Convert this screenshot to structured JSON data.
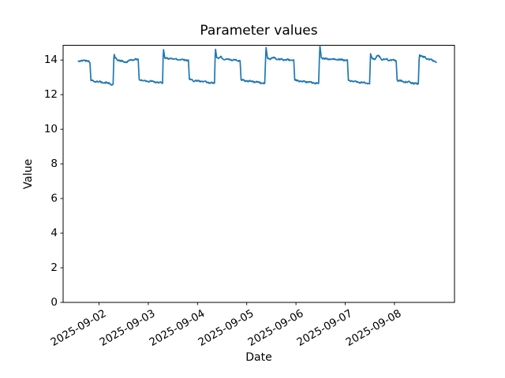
{
  "chart_data": {
    "type": "line",
    "title": "Parameter values",
    "xlabel": "Date",
    "ylabel": "Value",
    "background": "#ffffff",
    "axis_color": "#000000",
    "grid": false,
    "legend": null,
    "x_tick_labels": [
      "2025-09-02",
      "2025-09-03",
      "2025-09-04",
      "2025-09-05",
      "2025-09-06",
      "2025-09-07",
      "2025-09-08"
    ],
    "x_tick_days": [
      0,
      1,
      2,
      3,
      4,
      5,
      6
    ],
    "y_tick_labels": [
      "0",
      "2",
      "4",
      "6",
      "8",
      "10",
      "12",
      "14"
    ],
    "y_tick_values": [
      0,
      2,
      4,
      6,
      8,
      10,
      12,
      14
    ],
    "xlim_days": [
      -0.73,
      7.22
    ],
    "ylim": [
      0,
      14.85
    ],
    "series": [
      {
        "name": "parameter-values",
        "color": "#1f77b4",
        "line_width": 1.7,
        "noise_amplitude": 0.032,
        "points": [
          [
            -0.42,
            13.93
          ],
          [
            -0.36,
            13.97
          ],
          [
            -0.27,
            13.96
          ],
          [
            -0.21,
            13.97
          ],
          [
            -0.2,
            13.88
          ],
          [
            -0.185,
            13.86
          ],
          [
            -0.165,
            12.82
          ],
          [
            -0.1,
            12.78
          ],
          [
            0.0,
            12.74
          ],
          [
            0.1,
            12.7
          ],
          [
            0.22,
            12.64
          ],
          [
            0.265,
            12.57
          ],
          [
            0.285,
            12.56
          ],
          [
            0.3,
            14.1
          ],
          [
            0.308,
            14.32
          ],
          [
            0.33,
            14.1
          ],
          [
            0.36,
            14.04
          ],
          [
            0.45,
            13.93
          ],
          [
            0.55,
            13.88
          ],
          [
            0.65,
            14.0
          ],
          [
            0.72,
            14.04
          ],
          [
            0.795,
            14.02
          ],
          [
            0.815,
            12.88
          ],
          [
            0.9,
            12.8
          ],
          [
            1.05,
            12.77
          ],
          [
            1.2,
            12.7
          ],
          [
            1.29,
            12.66
          ],
          [
            1.302,
            14.2
          ],
          [
            1.31,
            14.6
          ],
          [
            1.335,
            14.12
          ],
          [
            1.4,
            14.06
          ],
          [
            1.45,
            14.11
          ],
          [
            1.55,
            14.04
          ],
          [
            1.7,
            14.02
          ],
          [
            1.815,
            13.99
          ],
          [
            1.835,
            12.88
          ],
          [
            1.95,
            12.8
          ],
          [
            2.1,
            12.76
          ],
          [
            2.25,
            12.68
          ],
          [
            2.345,
            12.65
          ],
          [
            2.358,
            14.2
          ],
          [
            2.366,
            14.62
          ],
          [
            2.39,
            14.14
          ],
          [
            2.43,
            14.08
          ],
          [
            2.47,
            14.18
          ],
          [
            2.52,
            14.06
          ],
          [
            2.6,
            14.04
          ],
          [
            2.75,
            14.0
          ],
          [
            2.865,
            13.96
          ],
          [
            2.885,
            12.85
          ],
          [
            3.0,
            12.79
          ],
          [
            3.15,
            12.75
          ],
          [
            3.3,
            12.68
          ],
          [
            3.365,
            12.64
          ],
          [
            3.385,
            14.25
          ],
          [
            3.393,
            14.72
          ],
          [
            3.42,
            14.12
          ],
          [
            3.47,
            14.07
          ],
          [
            3.55,
            14.14
          ],
          [
            3.62,
            14.05
          ],
          [
            3.8,
            14.01
          ],
          [
            3.955,
            13.98
          ],
          [
            3.975,
            12.84
          ],
          [
            4.1,
            12.77
          ],
          [
            4.25,
            12.73
          ],
          [
            4.4,
            12.66
          ],
          [
            4.46,
            12.63
          ],
          [
            4.478,
            14.3
          ],
          [
            4.487,
            14.82
          ],
          [
            4.515,
            14.13
          ],
          [
            4.6,
            14.07
          ],
          [
            4.75,
            14.04
          ],
          [
            4.9,
            14.01
          ],
          [
            5.045,
            13.99
          ],
          [
            5.065,
            12.82
          ],
          [
            5.18,
            12.76
          ],
          [
            5.3,
            12.72
          ],
          [
            5.44,
            12.66
          ],
          [
            5.495,
            12.63
          ],
          [
            5.515,
            14.36
          ],
          [
            5.545,
            14.1
          ],
          [
            5.6,
            14.06
          ],
          [
            5.64,
            14.2
          ],
          [
            5.68,
            14.24
          ],
          [
            5.73,
            14.05
          ],
          [
            5.85,
            14.02
          ],
          [
            6.035,
            13.97
          ],
          [
            6.055,
            12.84
          ],
          [
            6.17,
            12.76
          ],
          [
            6.3,
            12.71
          ],
          [
            6.43,
            12.64
          ],
          [
            6.485,
            12.62
          ],
          [
            6.502,
            14.05
          ],
          [
            6.512,
            14.3
          ],
          [
            6.55,
            14.22
          ],
          [
            6.65,
            14.1
          ],
          [
            6.75,
            14.0
          ],
          [
            6.85,
            13.9
          ]
        ]
      }
    ]
  }
}
